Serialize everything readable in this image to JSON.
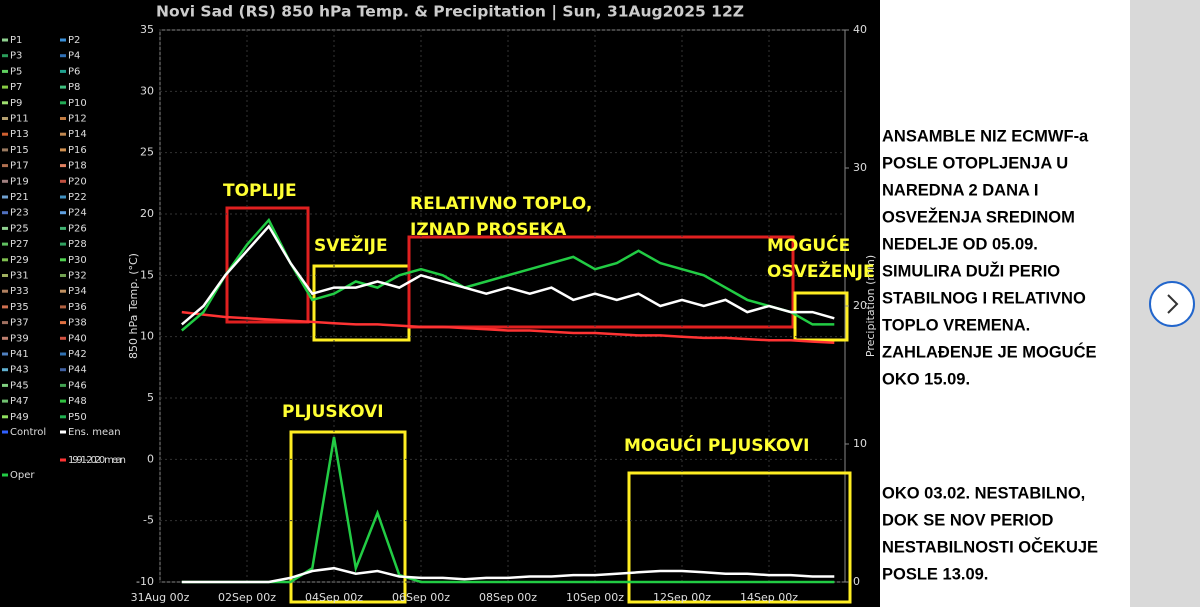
{
  "chart_data": {
    "type": "line",
    "title": "Novi Sad  (RS)  850 hPa Temp. & Precipitation | Sun, 31Aug2025 12Z",
    "ylabel": "850 hPa Temp. (°C)",
    "y2label": "Precipitation (mm)",
    "categories": [
      "31Aug 00z",
      null,
      null,
      null,
      "02Sep 00z",
      null,
      null,
      null,
      "04Sep 00z",
      null,
      null,
      null,
      "06Sep 00z",
      null,
      null,
      null,
      "08Sep 00z",
      null,
      null,
      null,
      "10Sep 00z",
      null,
      null,
      null,
      "12Sep 00z",
      null,
      null,
      null,
      "14Sep 00z",
      null,
      null,
      null
    ],
    "ylim": [
      -10,
      35
    ],
    "yticks": [
      -10,
      -5,
      0,
      5,
      10,
      15,
      20,
      25,
      30,
      35
    ],
    "y2lim": [
      0,
      40
    ],
    "y2ticks": [
      0,
      10,
      20,
      30,
      40
    ],
    "grid": true,
    "series": [
      {
        "color": "#ff3333",
        "values": [
          null,
          12,
          11.8,
          11.6,
          11.5,
          11.4,
          11.3,
          11.2,
          11.1,
          11,
          11,
          10.9,
          10.8,
          10.8,
          10.7,
          10.6,
          10.5,
          10.5,
          10.4,
          10.3,
          10.3,
          10.2,
          10.1,
          10.1,
          10,
          9.9,
          9.9,
          9.8,
          9.7,
          9.7,
          9.6,
          9.5
        ]
      },
      {
        "color": "#22cc44",
        "values": [
          null,
          10.5,
          12,
          15,
          17.5,
          19.5,
          16,
          13,
          13.5,
          14.5,
          14,
          15,
          15.5,
          15,
          14,
          14.5,
          15,
          15.5,
          16,
          16.5,
          15.5,
          16,
          17,
          16,
          15.5,
          15,
          14,
          13,
          12.5,
          12,
          11,
          11
        ]
      },
      {
        "color": "#ffffff",
        "values": [
          null,
          11,
          12.5,
          15,
          17,
          19,
          16,
          13.5,
          14,
          14,
          14.5,
          14,
          15,
          14.5,
          14,
          13.5,
          14,
          13.5,
          14,
          13,
          13.5,
          13,
          13.5,
          12.5,
          13,
          12.5,
          13,
          12,
          12.5,
          12,
          12,
          11.5
        ]
      },
      {
        "color": "#22cc44",
        "axis": "y2",
        "values": [
          null,
          0,
          0,
          0,
          0,
          0,
          0,
          1,
          10.5,
          1,
          5,
          0.5,
          0,
          0,
          0,
          0,
          0,
          0,
          0,
          0,
          0,
          0,
          0,
          0,
          0,
          0,
          0,
          0,
          0,
          0,
          0,
          0
        ]
      },
      {
        "color": "#ffffff",
        "axis": "y2",
        "values": [
          null,
          0,
          0,
          0,
          0,
          0,
          0.3,
          0.8,
          1,
          0.6,
          0.8,
          0.4,
          0.3,
          0.3,
          0.2,
          0.3,
          0.3,
          0.4,
          0.4,
          0.5,
          0.5,
          0.6,
          0.7,
          0.8,
          0.8,
          0.7,
          0.6,
          0.6,
          0.5,
          0.5,
          0.4,
          0.4
        ]
      }
    ],
    "legend": [
      {
        "name": "P1",
        "color": "#8fd18f"
      },
      {
        "name": "P2",
        "color": "#3a8fd8"
      },
      {
        "name": "P3",
        "color": "#2a9d5a"
      },
      {
        "name": "P4",
        "color": "#2f6fb5"
      },
      {
        "name": "P5",
        "color": "#5fd05f"
      },
      {
        "name": "P6",
        "color": "#1fa08f"
      },
      {
        "name": "P7",
        "color": "#88cc44"
      },
      {
        "name": "P8",
        "color": "#3fbf7f"
      },
      {
        "name": "P9",
        "color": "#a0e070"
      },
      {
        "name": "P10",
        "color": "#22aa55"
      },
      {
        "name": "P11",
        "color": "#b5a070"
      },
      {
        "name": "P12",
        "color": "#c07a40"
      },
      {
        "name": "P13",
        "color": "#d06030"
      },
      {
        "name": "P14",
        "color": "#c08850"
      },
      {
        "name": "P15",
        "color": "#9a7a60"
      },
      {
        "name": "P16",
        "color": "#d09050"
      },
      {
        "name": "P17",
        "color": "#b07050"
      },
      {
        "name": "P18",
        "color": "#e08060"
      },
      {
        "name": "P19",
        "color": "#a08080"
      },
      {
        "name": "P20",
        "color": "#c05040"
      },
      {
        "name": "P21",
        "color": "#70a0d0"
      },
      {
        "name": "P22",
        "color": "#4090c0"
      },
      {
        "name": "P23",
        "color": "#5070c0"
      },
      {
        "name": "P24",
        "color": "#60a0e0"
      },
      {
        "name": "P25",
        "color": "#90d090"
      },
      {
        "name": "P26",
        "color": "#40b070"
      },
      {
        "name": "P27",
        "color": "#60c060"
      },
      {
        "name": "P28",
        "color": "#30a060"
      },
      {
        "name": "P29",
        "color": "#80c050"
      },
      {
        "name": "P30",
        "color": "#50d050"
      },
      {
        "name": "P31",
        "color": "#a0b060"
      },
      {
        "name": "P32",
        "color": "#70a050"
      },
      {
        "name": "P33",
        "color": "#b08060"
      },
      {
        "name": "P34",
        "color": "#c09060"
      },
      {
        "name": "P35",
        "color": "#d07050"
      },
      {
        "name": "P36",
        "color": "#b06040"
      },
      {
        "name": "P37",
        "color": "#a07060"
      },
      {
        "name": "P38",
        "color": "#e07040"
      },
      {
        "name": "P39",
        "color": "#c08070"
      },
      {
        "name": "P40",
        "color": "#d05040"
      },
      {
        "name": "P41",
        "color": "#5080c0"
      },
      {
        "name": "P42",
        "color": "#3070b0"
      },
      {
        "name": "P43",
        "color": "#60b0d0"
      },
      {
        "name": "P44",
        "color": "#4060a0"
      },
      {
        "name": "P45",
        "color": "#80d080"
      },
      {
        "name": "P46",
        "color": "#40a050"
      },
      {
        "name": "P47",
        "color": "#70c070"
      },
      {
        "name": "P48",
        "color": "#30c040"
      },
      {
        "name": "P49",
        "color": "#90e060"
      },
      {
        "name": "P50",
        "color": "#20b050"
      },
      {
        "name": "Control",
        "color": "#3060ff"
      },
      {
        "name": "Ens. mean",
        "color": "#ffffff"
      },
      {
        "name": "1991-2020 mean",
        "color": "#ff3333"
      },
      {
        "name": "Oper",
        "color": "#22cc44"
      }
    ],
    "annotations": [
      "TOPLIJE",
      "SVEŽIJE",
      "RELATIVNO TOPLO,",
      "IZNAD PROSEKA",
      "MOGUĆE",
      "OSVEŽENJE",
      "PLJUSKOVI",
      "MOGUĆI PLJUSKOVI"
    ]
  },
  "note": {
    "paragraphs": [
      [
        "ANSAMBLE  NIZ ECMWF-a",
        "POSLE OTOPLJENJA U",
        "NAREDNA 2 DANA I",
        "OSVEŽENJA SREDINOM",
        "NEDELJE OD 05.09.",
        "SIMULIRA DUŽI PERIO",
        "STABILNOG I RELATIVNO",
        "TOPLO VREMENA.",
        "ZAHLAĐENJE JE MOGUĆE",
        "OKO 15.09."
      ],
      [
        "OKO 03.02. NESTABILNO,",
        "DOK SE NOV PERIOD",
        "NESTABILNOSTI OČEKUJE",
        "POSLE 13.09."
      ]
    ]
  }
}
